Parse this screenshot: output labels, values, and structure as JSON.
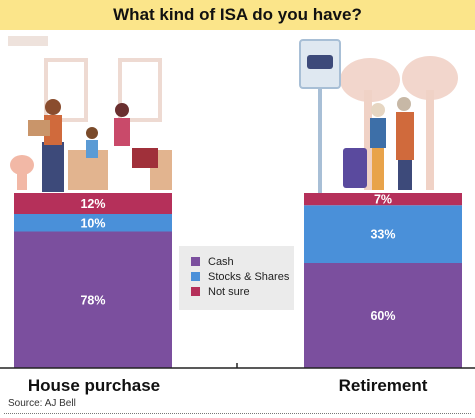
{
  "title": "What kind of ISA do you have?",
  "source": "Source: AJ Bell",
  "colors": {
    "cash": "#7b4f9e",
    "stocks": "#4a90d9",
    "not_sure": "#b5305a",
    "title_bg": "#fbe58a"
  },
  "chart_data": {
    "type": "bar",
    "stacked": true,
    "title": "What kind of ISA do you have?",
    "categories": [
      "House purchase",
      "Retirement"
    ],
    "series": [
      {
        "name": "Cash",
        "values": [
          78,
          60
        ]
      },
      {
        "name": "Stocks & Shares",
        "values": [
          10,
          33
        ]
      },
      {
        "name": "Not sure",
        "values": [
          12,
          7
        ]
      }
    ],
    "data_labels": [
      [
        "78%",
        "10%",
        "12%"
      ],
      [
        "60%",
        "33%",
        "7%"
      ]
    ],
    "ylim": [
      0,
      100
    ],
    "legend": "center",
    "grid": false
  }
}
